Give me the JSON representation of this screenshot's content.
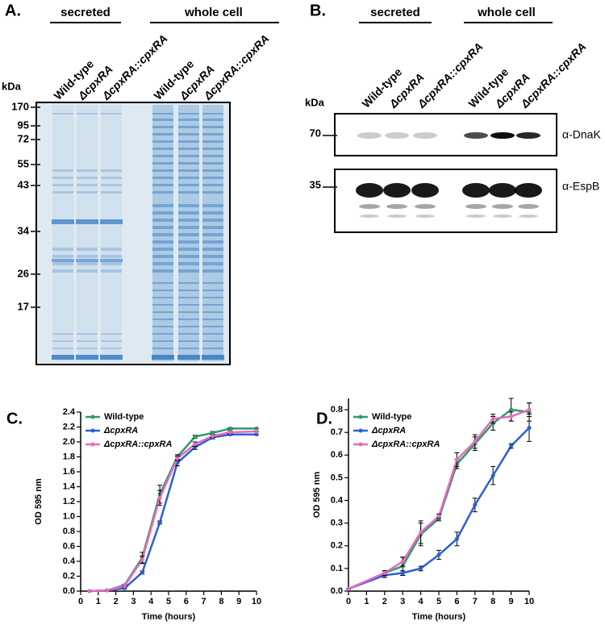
{
  "panels": {
    "A": {
      "label": "A.",
      "groups": [
        "secreted",
        "whole cell"
      ],
      "lanes": [
        "Wild-type",
        "ΔcpxRA",
        "ΔcpxRA::cpxRA",
        "Wild-type",
        "ΔcpxRA",
        "ΔcpxRA::cpxRA"
      ],
      "marker_unit": "kDa",
      "markers": [
        "170",
        "95",
        "72",
        "55",
        "43",
        "34",
        "26",
        "17"
      ]
    },
    "B": {
      "label": "B.",
      "groups": [
        "secreted",
        "whole cell"
      ],
      "lanes": [
        "Wild-type",
        "ΔcpxRA",
        "ΔcpxRA::cpxRA",
        "Wild-type",
        "ΔcpxRA",
        "ΔcpxRA::cpxRA"
      ],
      "marker_unit": "kDa",
      "blots": [
        {
          "marker": "70",
          "antibody": "α-DnaK"
        },
        {
          "marker": "35",
          "antibody": "α-EspB"
        }
      ]
    }
  },
  "chart_data": [
    {
      "type": "line",
      "title": "C.",
      "x_label": "Time (hours)",
      "y_label": "OD 595 nm",
      "x": [
        0.5,
        1.5,
        2.5,
        3.5,
        4.5,
        5.5,
        6.5,
        7.5,
        8.5,
        10
      ],
      "xlim": [
        0,
        10
      ],
      "xticks": [
        0,
        1,
        2,
        3,
        4,
        5,
        6,
        7,
        8,
        9,
        10
      ],
      "ylim": [
        0,
        2.4
      ],
      "yticks": [
        {
          "value": 0,
          "label": "0.0"
        },
        0.2,
        0.4,
        0.6,
        0.8,
        {
          "value": 1,
          "label": "1.0"
        },
        1.2,
        1.4,
        1.6,
        1.8,
        {
          "value": 2,
          "label": "2.0"
        },
        2.2,
        2.4
      ],
      "series": [
        {
          "name": "Wild-type",
          "color": "#2e9a6a",
          "values": [
            0,
            0.01,
            0.08,
            0.45,
            1.3,
            1.8,
            2.07,
            2.12,
            2.18,
            2.18
          ],
          "errors": [
            0,
            0,
            0.01,
            0.07,
            0.12,
            0.03,
            0.02,
            0.02,
            0.01,
            0
          ]
        },
        {
          "name": "ΔcpxRA",
          "color": "#2a5fd8",
          "values": [
            0,
            0.01,
            0.04,
            0.25,
            0.92,
            1.72,
            1.93,
            2.06,
            2.1,
            2.1
          ],
          "errors": [
            0,
            0,
            0.01,
            0.02,
            0.02,
            0.04,
            0.03,
            0.02,
            0.01,
            0
          ]
        },
        {
          "name": "ΔcpxRA::cpxRA",
          "color": "#e66bc0",
          "values": [
            0,
            0.01,
            0.07,
            0.42,
            1.25,
            1.78,
            1.97,
            2.08,
            2.13,
            2.14
          ],
          "errors": [
            0,
            0,
            0.01,
            0.05,
            0.1,
            0.03,
            0.03,
            0.02,
            0.02,
            0
          ]
        }
      ]
    },
    {
      "type": "line",
      "title": "D.",
      "x_label": "Time (hours)",
      "y_label": "OD 595 nm",
      "x": [
        0,
        2,
        3,
        4,
        5,
        6,
        7,
        8,
        9,
        10
      ],
      "xlim": [
        0,
        10
      ],
      "xticks": [
        0,
        1,
        2,
        3,
        4,
        5,
        6,
        7,
        8,
        9,
        10
      ],
      "ylim": [
        0,
        0.85
      ],
      "yticks": [
        {
          "value": 0,
          "label": "0.0"
        },
        0.1,
        0.2,
        0.3,
        0.4,
        0.5,
        0.6,
        0.7,
        0.8
      ],
      "series": [
        {
          "name": "Wild-type",
          "color": "#2e9a6a",
          "values": [
            0.01,
            0.08,
            0.11,
            0.25,
            0.32,
            0.56,
            0.65,
            0.74,
            0.8,
            0.79
          ],
          "errors": [
            0,
            0.01,
            0.04,
            0.05,
            0.01,
            0.02,
            0.03,
            0.03,
            0.05,
            0.04
          ]
        },
        {
          "name": "ΔcpxRA",
          "color": "#2a5fd8",
          "values": [
            0.01,
            0.07,
            0.08,
            0.1,
            0.16,
            0.23,
            0.38,
            0.51,
            0.64,
            0.72
          ],
          "errors": [
            0,
            0.01,
            0.01,
            0.01,
            0.02,
            0.03,
            0.03,
            0.04,
            0.01,
            0.06
          ]
        },
        {
          "name": "ΔcpxRA::cpxRA",
          "color": "#e66bc0",
          "values": [
            0.01,
            0.08,
            0.13,
            0.26,
            0.33,
            0.58,
            0.66,
            0.76,
            0.77,
            0.8
          ],
          "errors": [
            0,
            0.01,
            0.02,
            0.05,
            0.01,
            0.03,
            0.03,
            0.02,
            0.02,
            0.03
          ]
        }
      ]
    }
  ]
}
